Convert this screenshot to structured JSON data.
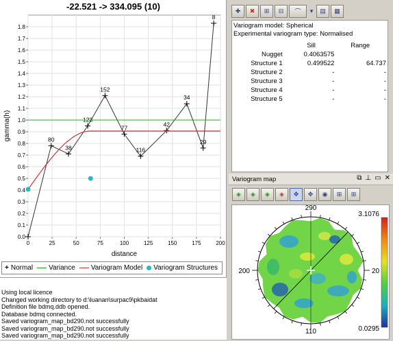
{
  "chart": {
    "title": "-22.521 -> 334.095 (10)",
    "xlabel": "distance",
    "ylabel": "gamma(h)"
  },
  "chart_data": {
    "type": "line",
    "xlim": [
      0,
      200
    ],
    "ylim": [
      0,
      1.9
    ],
    "x_ticks": [
      0,
      25,
      50,
      75,
      100,
      125,
      150,
      175,
      200
    ],
    "y_ticks": [
      0,
      0.1,
      0.2,
      0.3,
      0.4,
      0.5,
      0.6,
      0.7,
      0.8,
      0.9,
      1.0,
      1.1,
      1.2,
      1.3,
      1.4,
      1.5,
      1.6,
      1.7,
      1.8
    ],
    "grid": true,
    "legend_position": "bottom",
    "series": [
      {
        "name": "Normal",
        "kind": "line-markers",
        "color": "#333333",
        "x": [
          0,
          24,
          42,
          62,
          80,
          100,
          117,
          144,
          165,
          182,
          193
        ],
        "y": [
          0.0,
          0.78,
          0.71,
          0.95,
          1.21,
          0.88,
          0.69,
          0.91,
          1.14,
          0.76,
          1.83
        ],
        "labels": [
          "",
          "80",
          "38",
          "123",
          "152",
          "77",
          "116",
          "42",
          "34",
          "29",
          "8"
        ]
      },
      {
        "name": "Variance",
        "kind": "hline",
        "color": "#22aa22",
        "y": 1.0
      },
      {
        "name": "Variogram Model",
        "kind": "spherical",
        "color": "#cc3333",
        "nugget": 0.4063575,
        "sill": 0.499522,
        "range": 64.737
      },
      {
        "name": "Variogram Structures",
        "kind": "points",
        "color": "#29b8c8",
        "x": [
          0,
          65
        ],
        "y": [
          0.4063575,
          0.499522
        ]
      }
    ]
  },
  "legend": {
    "normal": "Normal",
    "variance": "Variance",
    "model": "Variogram Model",
    "structures": "Variogram Structures"
  },
  "log": [
    "Using local licence",
    "Changed working directory to d:\\luanan\\surpac9\\pkbaidat",
    "Definition file bdmq.ddb opened.",
    "Database bdmq connected.",
    "Saved variogram_map_bd290.not successfully",
    "Saved variogram_map_bd290.not successfully",
    "Saved variogram_map_bd290.not successfully"
  ],
  "model": {
    "model_line": "Variogram model: Spherical",
    "type_line": "Experimental variogram type: Normalised",
    "col_sill": "Sill",
    "col_range": "Range",
    "rows": [
      {
        "label": "Nugget",
        "sill": "0.4063575",
        "range": ""
      },
      {
        "label": "Structure 1",
        "sill": "0.499522",
        "range": "64.737"
      },
      {
        "label": "Structure 2",
        "sill": "-",
        "range": "-"
      },
      {
        "label": "Structure 3",
        "sill": "-",
        "range": "-"
      },
      {
        "label": "Structure 4",
        "sill": "-",
        "range": "-"
      },
      {
        "label": "Structure 5",
        "sill": "-",
        "range": "-"
      }
    ]
  },
  "map": {
    "title": "Variogram map",
    "labels": {
      "top": "290",
      "left": "200",
      "right": "20",
      "bottom": "110"
    },
    "scale_max": "3.1076",
    "scale_min": "0.0295"
  }
}
